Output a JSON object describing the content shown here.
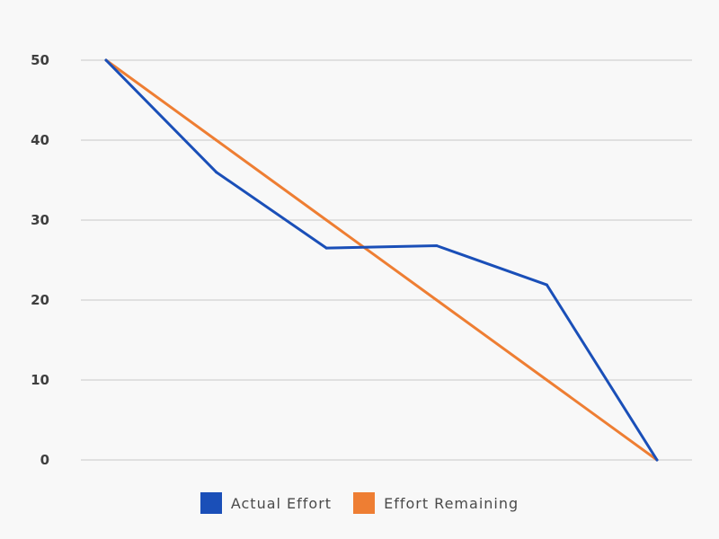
{
  "chart_data": {
    "type": "line",
    "x": [
      1,
      2,
      3,
      4,
      5,
      6
    ],
    "series": [
      {
        "name": "Actual Effort",
        "color": "#1a4fb8",
        "values": [
          50,
          36,
          26.5,
          26.8,
          21.9,
          0
        ]
      },
      {
        "name": "Effort Remaining",
        "color": "#ee7e33",
        "values": [
          50,
          40,
          30,
          20,
          10,
          0
        ]
      }
    ],
    "yticks": [
      0,
      10,
      20,
      30,
      40,
      50
    ],
    "ylim": [
      0,
      50
    ],
    "grid": true,
    "legend_position": "bottom"
  }
}
